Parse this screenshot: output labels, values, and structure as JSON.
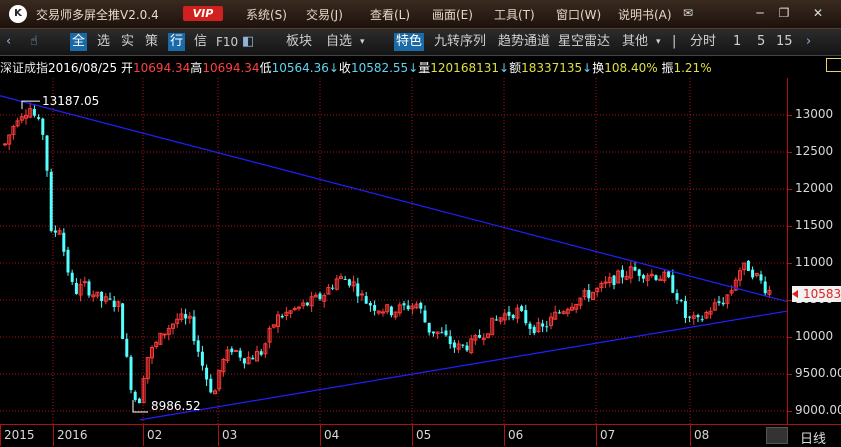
{
  "app": {
    "logo": "K",
    "title": "交易师多屏全推V2.0.4",
    "vip": "VIP",
    "menus": [
      "系统(S)",
      "交易(J)",
      "查看(L)",
      "画面(E)",
      "工具(T)",
      "窗口(W)",
      "说明书(A)"
    ]
  },
  "toolbar": {
    "nav_back_icon": "chevron-left-icon",
    "hand_icon": "hand-pointer-icon",
    "items": [
      "全",
      "选",
      "实",
      "策",
      "行",
      "信",
      "F10",
      "板块",
      "自选",
      "特色",
      "九转序列",
      "趋势通道",
      "星空雷达",
      "其他",
      "分时",
      "1",
      "5",
      "15"
    ],
    "selected": [
      "全",
      "行",
      "特色"
    ]
  },
  "quote": {
    "name": "深证成指",
    "date": "2016/08/25",
    "open_label": "开",
    "open": "10694.34",
    "high_label": "高",
    "high": "10694.34",
    "low_label": "低",
    "low": "10564.36",
    "close_label": "收",
    "close": "10582.55",
    "volume_label": "量",
    "volume": "120168131",
    "amount_label": "额",
    "amount": "18337135",
    "turnover_label": "换",
    "turnover": "108.40%",
    "amplitude_label": "振",
    "amplitude": "1.21%",
    "down_arrow": "↓"
  },
  "chart_data": {
    "type": "candlestick",
    "y_axis": {
      "labels": [
        "13000",
        "12500",
        "12000",
        "11500",
        "11000",
        "10500",
        "10000",
        "9500.00",
        "9000.00"
      ],
      "ylim": [
        8840,
        13480
      ]
    },
    "x_axis": {
      "labels": [
        "2015",
        "2016",
        "02",
        "03",
        "04",
        "05",
        "06",
        "07",
        "08"
      ]
    },
    "annotations": {
      "high": "13187.05",
      "low": "8986.52"
    },
    "current_price_tag": "10583",
    "trendlines": [
      {
        "from": [
          "2015-12",
          13260
        ],
        "to": [
          "2016-08-end",
          10480
        ]
      },
      {
        "from": [
          "2016-01-28",
          8880
        ],
        "to": [
          "2016-08-end",
          10350
        ]
      }
    ],
    "period": "日线",
    "colors": {
      "up": "#ff3a3a",
      "down": "#54ffff",
      "trendline": "#2020ff",
      "grid": "#b01010"
    }
  }
}
